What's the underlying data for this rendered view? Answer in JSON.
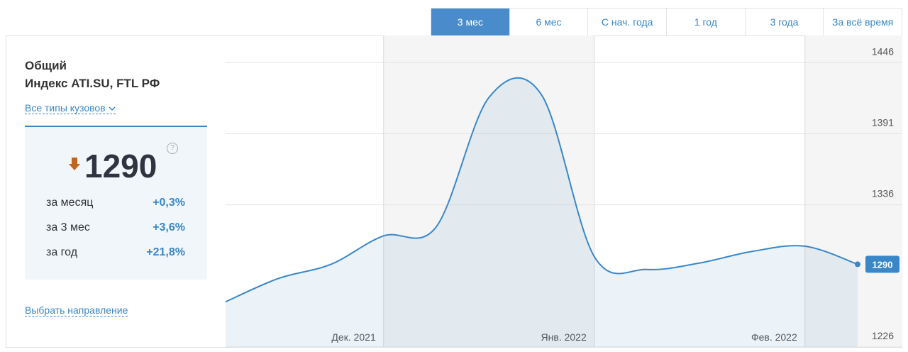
{
  "tabs": [
    "3 мес",
    "6 мес",
    "С нач. года",
    "1 год",
    "3 года",
    "За всё время"
  ],
  "active_tab": 0,
  "panel": {
    "title": "Общий",
    "subtitle": "Индекс ATI.SU, FTL РФ",
    "filter": "Все типы кузовов",
    "index_value": 1290,
    "help": "?",
    "changes": [
      {
        "label": "за месяц",
        "value": "+0,3%"
      },
      {
        "label": "за 3 мес",
        "value": "+3,6%"
      },
      {
        "label": "за год",
        "value": "+21,8%"
      }
    ],
    "link": "Выбрать направление"
  },
  "chart_data": {
    "type": "line",
    "values": [
      1261,
      1279,
      1290,
      1312,
      1319,
      1419,
      1421,
      1296,
      1286,
      1291,
      1300,
      1304,
      1290
    ],
    "color": "#3a87c8",
    "ylim": [
      1226,
      1467
    ],
    "yticks": [
      1226,
      1336,
      1391,
      1446
    ],
    "grid": true,
    "xticks": [
      {
        "value": 3,
        "label": "Дек. 2021"
      },
      {
        "value": 7,
        "label": "Янв. 2022"
      },
      {
        "value": 11,
        "label": "Фев. 2022"
      }
    ]
  }
}
